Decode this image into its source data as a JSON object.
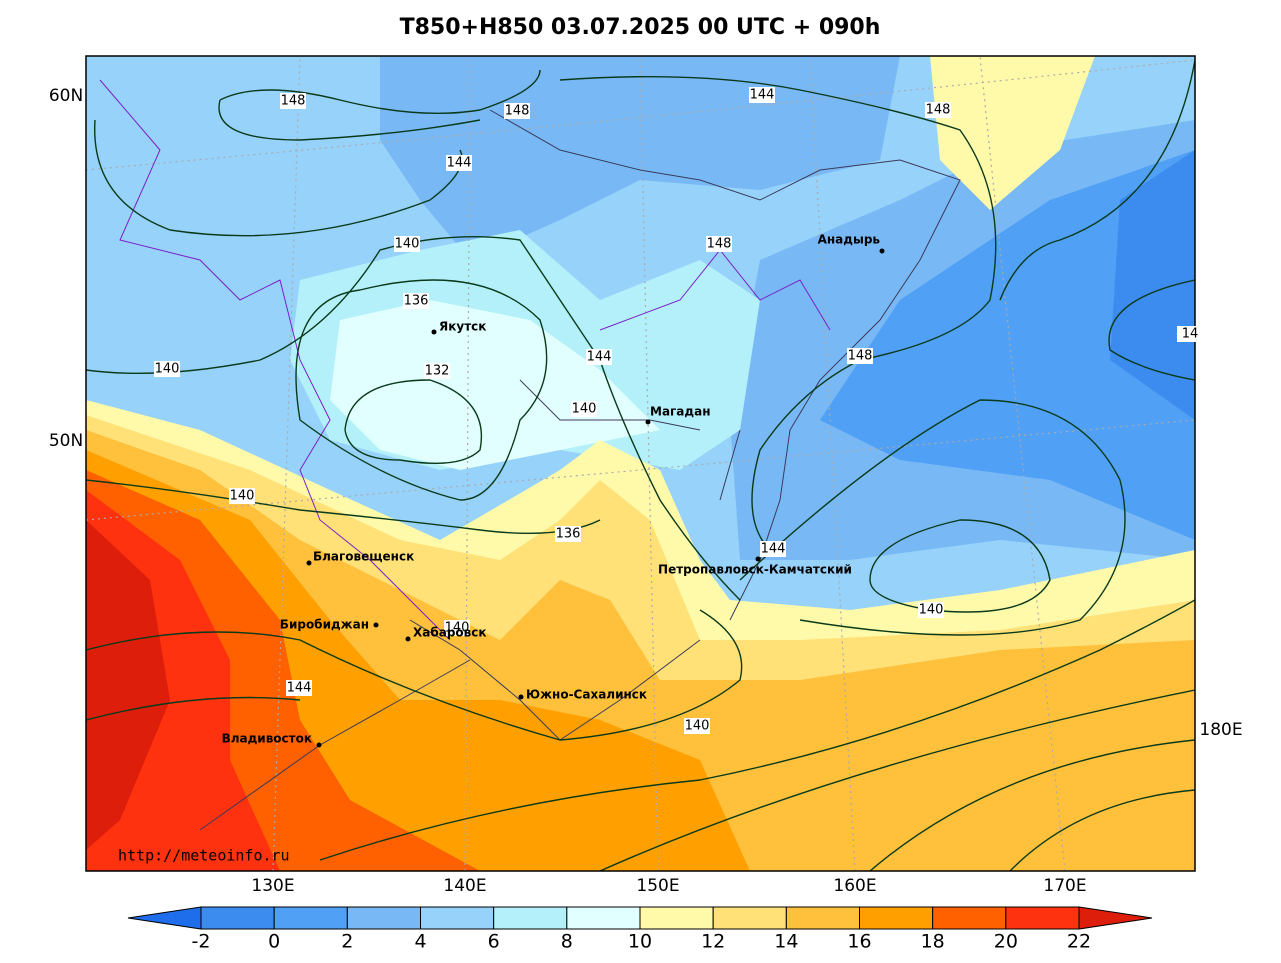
{
  "header": {
    "title": "T850+H850 03.07.2025 00 UTC + 090h"
  },
  "map": {
    "lat_labels": [
      "60N",
      "50N"
    ],
    "lon_labels": [
      "130E",
      "140E",
      "150E",
      "160E",
      "170E",
      "180E"
    ],
    "contour_labels": [
      148,
      148,
      144,
      148,
      144,
      140,
      148,
      136,
      144,
      148,
      140,
      132,
      140,
      140,
      136,
      144,
      140,
      140,
      144,
      140,
      14
    ],
    "cities": [
      "Якутск",
      "Магадан",
      "Анадырь",
      "Благовещенск",
      "Биробиджан",
      "Хабаровск",
      "Южно-Сахалинск",
      "Владивосток",
      "Петропавловск-Камчатский"
    ],
    "source": "http://meteoinfo.ru"
  },
  "colorbar": {
    "ticks": [
      -2,
      0,
      2,
      4,
      6,
      8,
      10,
      12,
      14,
      16,
      18,
      20,
      22
    ],
    "colors": [
      "#1e6eeb",
      "#3c8cf0",
      "#50a0f5",
      "#78b9f5",
      "#96d2fa",
      "#b4f0fa",
      "#e1ffff",
      "#fffaaa",
      "#ffe178",
      "#ffc03c",
      "#ffa000",
      "#ff6000",
      "#ff3210",
      "#dc1e0a"
    ]
  }
}
